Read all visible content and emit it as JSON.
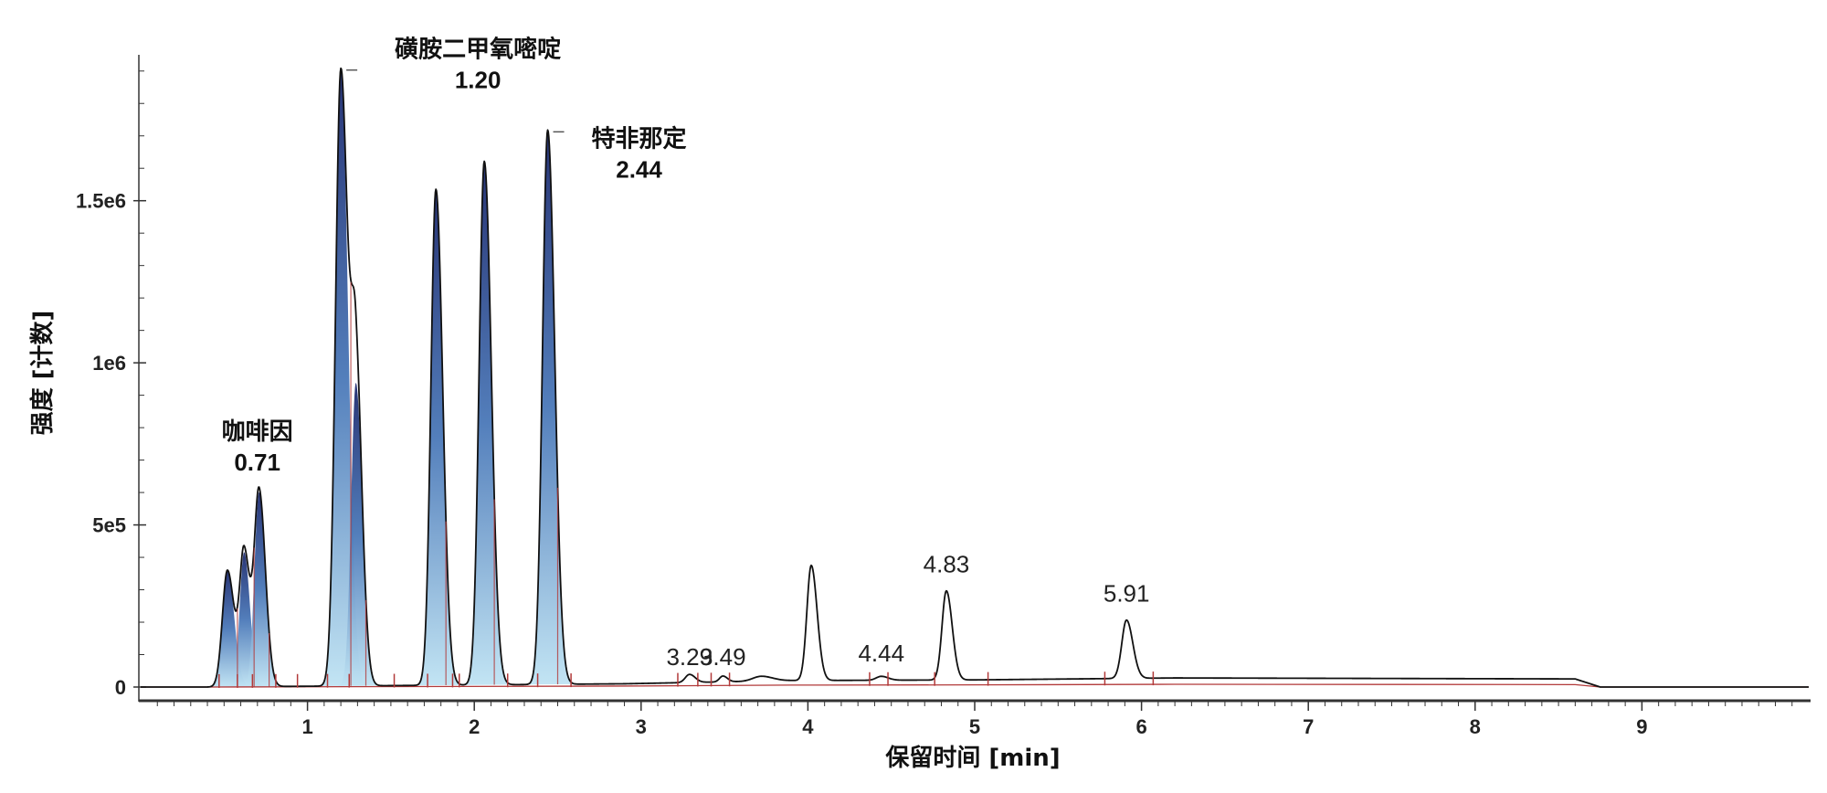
{
  "chart_data": {
    "type": "line",
    "xlabel": "保留时间 [min]",
    "ylabel": "强度 [计数]",
    "xlim": [
      0,
      10
    ],
    "ylim": [
      0,
      1950000
    ],
    "x_ticks": [
      {
        "value": 1,
        "label": "1"
      },
      {
        "value": 2,
        "label": "2"
      },
      {
        "value": 3,
        "label": "3"
      },
      {
        "value": 4,
        "label": "4"
      },
      {
        "value": 5,
        "label": "5"
      },
      {
        "value": 6,
        "label": "6"
      },
      {
        "value": 7,
        "label": "7"
      },
      {
        "value": 8,
        "label": "8"
      },
      {
        "value": 9,
        "label": "9"
      }
    ],
    "y_ticks": [
      {
        "value": 0,
        "label": "0"
      },
      {
        "value": 500000,
        "label": "5e5"
      },
      {
        "value": 1000000,
        "label": "1e6"
      },
      {
        "value": 1500000,
        "label": "1.5e6"
      }
    ],
    "baseline": [
      {
        "x": 0.0,
        "y": 0
      },
      {
        "x": 0.4,
        "y": 0
      },
      {
        "x": 2.9,
        "y": 10000
      },
      {
        "x": 3.9,
        "y": 20000
      },
      {
        "x": 5.0,
        "y": 22000
      },
      {
        "x": 6.2,
        "y": 28000
      },
      {
        "x": 8.6,
        "y": 25000
      },
      {
        "x": 8.75,
        "y": 0
      },
      {
        "x": 10.0,
        "y": 0
      }
    ],
    "peaks": [
      {
        "rt": 0.52,
        "height": 360000,
        "width": 0.03,
        "filled": true
      },
      {
        "rt": 0.62,
        "height": 415000,
        "width": 0.026,
        "filled": true
      },
      {
        "rt": 0.71,
        "height": 600000,
        "width": 0.028,
        "filled": true
      },
      {
        "rt": 1.2,
        "height": 1900000,
        "width": 0.032,
        "filled": true
      },
      {
        "rt": 1.29,
        "height": 935000,
        "width": 0.028,
        "filled": true
      },
      {
        "rt": 1.77,
        "height": 1530000,
        "width": 0.03,
        "filled": true
      },
      {
        "rt": 2.06,
        "height": 1615000,
        "width": 0.031,
        "filled": true
      },
      {
        "rt": 2.44,
        "height": 1710000,
        "width": 0.031,
        "filled": true
      },
      {
        "rt": 3.29,
        "height": 25000,
        "width": 0.025,
        "filled": false
      },
      {
        "rt": 3.49,
        "height": 18000,
        "width": 0.02,
        "filled": false
      },
      {
        "rt": 3.72,
        "height": 15000,
        "width": 0.05,
        "filled": false
      },
      {
        "rt": 4.02,
        "height": 355000,
        "width": 0.026,
        "filled": false
      },
      {
        "rt": 4.44,
        "height": 12000,
        "width": 0.03,
        "filled": false
      },
      {
        "rt": 4.83,
        "height": 275000,
        "width": 0.026,
        "filled": false
      },
      {
        "rt": 5.91,
        "height": 180000,
        "width": 0.028,
        "filled": false
      }
    ],
    "integration_markers": [
      0.47,
      0.58,
      0.67,
      0.81,
      0.94,
      1.12,
      1.25,
      1.52,
      1.72,
      1.87,
      1.91,
      2.2,
      2.38,
      2.58,
      3.22,
      3.34,
      3.42,
      3.53,
      4.37,
      4.48,
      4.76,
      5.08,
      5.78,
      6.07
    ],
    "annotations": [
      {
        "name": "咖啡因",
        "rt_label": "0.71",
        "rt": 0.71,
        "bold": true
      },
      {
        "name": "磺胺二甲氧嘧啶",
        "rt_label": "1.20",
        "rt": 1.2,
        "bold": true
      },
      {
        "name": "特非那定",
        "rt_label": "2.44",
        "rt": 2.44,
        "bold": true
      },
      {
        "rt_label": "3.29",
        "rt": 3.29,
        "bold": false
      },
      {
        "rt_label": "3.49",
        "rt": 3.49,
        "bold": false
      },
      {
        "rt_label": "4.44",
        "rt": 4.44,
        "bold": false
      },
      {
        "rt_label": "4.83",
        "rt": 4.83,
        "bold": false
      },
      {
        "rt_label": "5.91",
        "rt": 5.91,
        "bold": false
      }
    ],
    "colors": {
      "trace": "#111111",
      "baseline": "#b23a3a",
      "marker": "#b23a3a",
      "fill_top": "#1d2a6e",
      "fill_mid": "#4a78b8",
      "fill_bottom": "#bfe3f3",
      "axis": "#333333"
    }
  }
}
